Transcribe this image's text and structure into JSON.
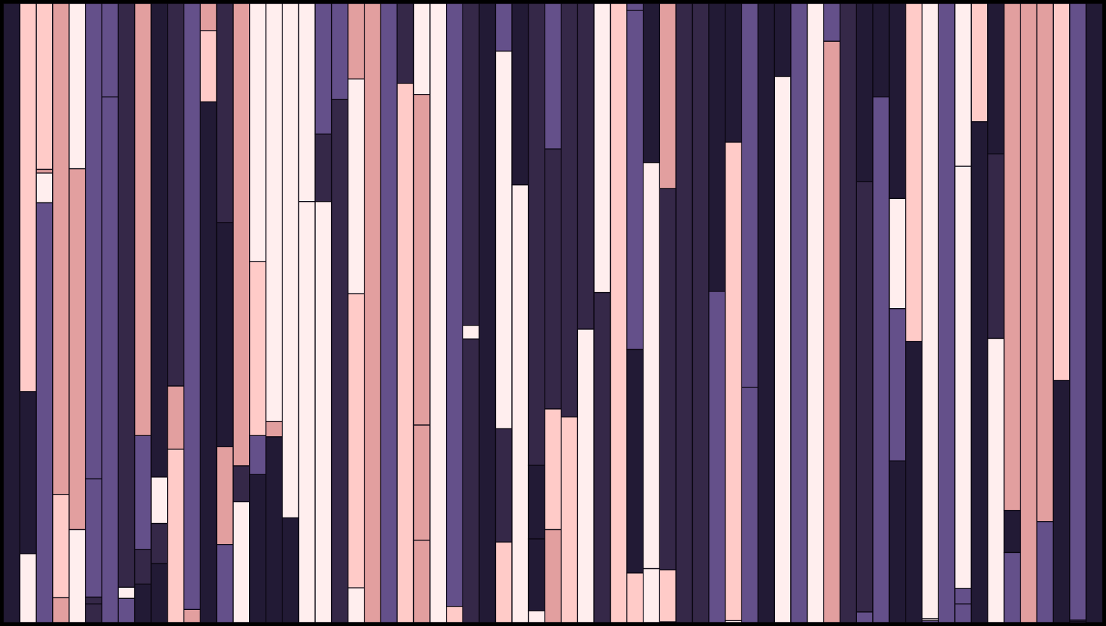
{
  "artwork": {
    "description_free": true,
    "palette": {
      "frame": "#000000",
      "outline": "#0b0712",
      "ink": "#221a35",
      "plum": "#352848",
      "violet": "#64508a",
      "rose": "#e29f9f",
      "blush": "#ffcbc8",
      "pearl": "#ffeeee"
    },
    "columns": [
      [
        [
          "ink",
          1.0
        ]
      ],
      [
        [
          "blush",
          0.627
        ],
        [
          "ink",
          0.262
        ],
        [
          "pearl",
          0.111
        ]
      ],
      [
        [
          "blush",
          0.268
        ],
        [
          "rose",
          0.006
        ],
        [
          "pearl",
          0.048
        ],
        [
          "violet",
          0.678
        ]
      ],
      [
        [
          "rose",
          0.793
        ],
        [
          "blush",
          0.167
        ],
        [
          "rose",
          0.04
        ]
      ],
      [
        [
          "pearl",
          0.267
        ],
        [
          "rose",
          0.583
        ],
        [
          "pearl",
          0.15
        ]
      ],
      [
        [
          "violet",
          0.768
        ],
        [
          "violet",
          0.191
        ],
        [
          "plum",
          0.011
        ],
        [
          "plum",
          0.03
        ]
      ],
      [
        [
          "violet",
          0.151
        ],
        [
          "violet",
          0.849
        ]
      ],
      [
        [
          "plum",
          0.943
        ],
        [
          "pearl",
          0.018
        ],
        [
          "violet",
          0.039
        ]
      ],
      [
        [
          "rose",
          0.698
        ],
        [
          "violet",
          0.184
        ],
        [
          "plum",
          0.056
        ],
        [
          "ink",
          0.062
        ]
      ],
      [
        [
          "ink",
          0.765
        ],
        [
          "pearl",
          0.075
        ],
        [
          "plum",
          0.065
        ],
        [
          "ink",
          0.095
        ]
      ],
      [
        [
          "plum",
          0.618
        ],
        [
          "rose",
          0.102
        ],
        [
          "blush",
          0.28
        ]
      ],
      [
        [
          "violet",
          0.979
        ],
        [
          "rose",
          0.021
        ]
      ],
      [
        [
          "rose",
          0.044
        ],
        [
          "blush",
          0.115
        ],
        [
          "ink",
          0.841
        ]
      ],
      [
        [
          "plum",
          0.354
        ],
        [
          "ink",
          0.362
        ],
        [
          "rose",
          0.158
        ],
        [
          "violet",
          0.126
        ]
      ],
      [
        [
          "rose",
          0.747
        ],
        [
          "plum",
          0.058
        ],
        [
          "pearl",
          0.195
        ]
      ],
      [
        [
          "pearl",
          0.417
        ],
        [
          "blush",
          0.281
        ],
        [
          "violet",
          0.063
        ],
        [
          "ink",
          0.239
        ]
      ],
      [
        [
          "pearl",
          0.675
        ],
        [
          "rose",
          0.025
        ],
        [
          "ink",
          0.3
        ]
      ],
      [
        [
          "pearl",
          0.831
        ],
        [
          "ink",
          0.169
        ]
      ],
      [
        [
          "pearl",
          0.32
        ],
        [
          "pearl",
          0.68
        ]
      ],
      [
        [
          "violet",
          0.211
        ],
        [
          "plum",
          0.109
        ],
        [
          "pearl",
          0.68
        ]
      ],
      [
        [
          "violet",
          0.155
        ],
        [
          "plum",
          0.845
        ]
      ],
      [
        [
          "rose",
          0.122
        ],
        [
          "pearl",
          0.347
        ],
        [
          "blush",
          0.475
        ],
        [
          "pearl",
          0.056
        ]
      ],
      [
        [
          "rose",
          1.0
        ]
      ],
      [
        [
          "violet",
          1.0
        ]
      ],
      [
        [
          "plum",
          0.129
        ],
        [
          "blush",
          0.871
        ]
      ],
      [
        [
          "pearl",
          0.147
        ],
        [
          "rose",
          0.534
        ],
        [
          "rose",
          0.186
        ],
        [
          "rose",
          0.133
        ]
      ],
      [
        [
          "pearl",
          1.0
        ]
      ],
      [
        [
          "violet",
          0.974
        ],
        [
          "blush",
          0.026
        ]
      ],
      [
        [
          "plum",
          0.52
        ],
        [
          "pearl",
          0.022
        ],
        [
          "plum",
          0.458
        ]
      ],
      [
        [
          "ink",
          1.0
        ]
      ],
      [
        [
          "violet",
          0.077
        ],
        [
          "pearl",
          0.61
        ],
        [
          "plum",
          0.183
        ],
        [
          "blush",
          0.13
        ]
      ],
      [
        [
          "ink",
          0.293
        ],
        [
          "pearl",
          0.707
        ]
      ],
      [
        [
          "plum",
          0.746
        ],
        [
          "ink",
          0.119
        ],
        [
          "ink",
          0.116
        ],
        [
          "pearl",
          0.019
        ]
      ],
      [
        [
          "violet",
          0.235
        ],
        [
          "plum",
          0.42
        ],
        [
          "blush",
          0.195
        ],
        [
          "rose",
          0.15
        ]
      ],
      [
        [
          "plum",
          0.668
        ],
        [
          "blush",
          0.332
        ]
      ],
      [
        [
          "plum",
          0.526
        ],
        [
          "pearl",
          0.474
        ]
      ],
      [
        [
          "pearl",
          0.467
        ],
        [
          "plum",
          0.533
        ]
      ],
      [
        [
          "blush",
          1.0
        ]
      ],
      [
        [
          "violet",
          0.011
        ],
        [
          "violet",
          0.548
        ],
        [
          "ink",
          0.361
        ],
        [
          "blush",
          0.08
        ]
      ],
      [
        [
          "ink",
          0.257
        ],
        [
          "pearl",
          0.656
        ],
        [
          "pearl",
          0.087
        ]
      ],
      [
        [
          "rose",
          0.299
        ],
        [
          "plum",
          0.616
        ],
        [
          "blush",
          0.084
        ],
        [
          "pearl",
          0.001
        ]
      ],
      [
        [
          "plum",
          1.0
        ]
      ],
      [
        [
          "plum",
          1.0
        ]
      ],
      [
        [
          "ink",
          0.465
        ],
        [
          "violet",
          0.535
        ]
      ],
      [
        [
          "ink",
          0.224
        ],
        [
          "blush",
          0.773
        ],
        [
          "pearl",
          0.003
        ]
      ],
      [
        [
          "violet",
          0.62
        ],
        [
          "violet",
          0.38
        ]
      ],
      [
        [
          "ink",
          1.0
        ]
      ],
      [
        [
          "ink",
          0.118
        ],
        [
          "pearl",
          0.882
        ]
      ],
      [
        [
          "violet",
          1.0
        ]
      ],
      [
        [
          "pearl",
          1.0
        ]
      ],
      [
        [
          "violet",
          0.061
        ],
        [
          "rose",
          0.939
        ]
      ],
      [
        [
          "plum",
          1.0
        ]
      ],
      [
        [
          "ink",
          0.288
        ],
        [
          "plum",
          0.695
        ],
        [
          "violet",
          0.017
        ]
      ],
      [
        [
          "ink",
          0.151
        ],
        [
          "violet",
          0.849
        ]
      ],
      [
        [
          "ink",
          0.315
        ],
        [
          "pearl",
          0.178
        ],
        [
          "violet",
          0.246
        ],
        [
          "ink",
          0.261
        ]
      ],
      [
        [
          "blush",
          0.546
        ],
        [
          "ink",
          0.454
        ]
      ],
      [
        [
          "pearl",
          0.994
        ],
        [
          "pearl",
          0.003
        ],
        [
          "violet",
          0.003
        ]
      ],
      [
        [
          "violet",
          1.0
        ]
      ],
      [
        [
          "pearl",
          0.263
        ],
        [
          "pearl",
          0.682
        ],
        [
          "violet",
          0.025
        ],
        [
          "violet",
          0.03
        ]
      ],
      [
        [
          "blush",
          0.191
        ],
        [
          "ink",
          0.809
        ]
      ],
      [
        [
          "ink",
          0.243
        ],
        [
          "plum",
          0.298
        ],
        [
          "pearl",
          0.459
        ]
      ],
      [
        [
          "rose",
          0.819
        ],
        [
          "ink",
          0.068
        ],
        [
          "violet",
          0.113
        ]
      ],
      [
        [
          "rose",
          1.0
        ]
      ],
      [
        [
          "rose",
          0.837
        ],
        [
          "violet",
          0.163
        ]
      ],
      [
        [
          "blush",
          0.609
        ],
        [
          "ink",
          0.391
        ]
      ],
      [
        [
          "violet",
          0.996
        ],
        [
          "violet",
          0.002
        ],
        [
          "violet",
          0.002
        ]
      ],
      [
        [
          "ink",
          1.0
        ]
      ]
    ]
  }
}
